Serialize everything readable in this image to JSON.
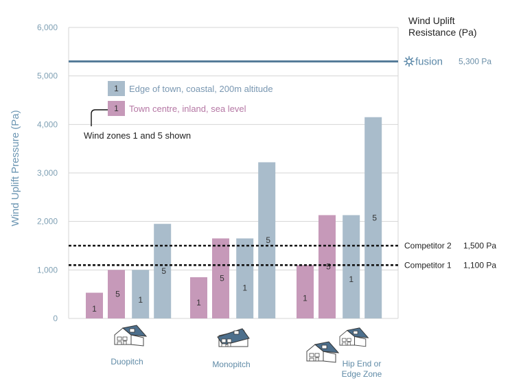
{
  "chart_data": {
    "type": "bar",
    "ylabel": "Wind Uplift Pressure (Pa)",
    "ylim": [
      0,
      6000
    ],
    "yticks": [
      "0",
      "1,000",
      "2,000",
      "3,000",
      "4,000",
      "5,000",
      "6,000"
    ],
    "grid": true,
    "right_title_line1": "Wind Uplift",
    "right_title_line2": "Resistance (Pa)",
    "categories": [
      {
        "label_lines": [
          "Duopitch"
        ],
        "icon": "house-duopitch-icon"
      },
      {
        "label_lines": [
          "Monopitch"
        ],
        "icon": "house-monopitch-icon"
      },
      {
        "label_lines": [
          "Hip End or",
          "Edge Zone"
        ],
        "icon": "house-hip-end-icon"
      }
    ],
    "series": [
      {
        "name": "Town centre, inland, sea level",
        "color": "#c699b9"
      },
      {
        "name": "Edge of town, coastal, 200m altitude",
        "color": "#a9bccb"
      }
    ],
    "bars": [
      {
        "category": 0,
        "series": 0,
        "zone": "1",
        "value": 530
      },
      {
        "category": 0,
        "series": 0,
        "zone": "5",
        "value": 1000
      },
      {
        "category": 0,
        "series": 1,
        "zone": "1",
        "value": 1000
      },
      {
        "category": 0,
        "series": 1,
        "zone": "5",
        "value": 1950
      },
      {
        "category": 1,
        "series": 0,
        "zone": "1",
        "value": 850
      },
      {
        "category": 1,
        "series": 0,
        "zone": "5",
        "value": 1650
      },
      {
        "category": 1,
        "series": 1,
        "zone": "1",
        "value": 1650
      },
      {
        "category": 1,
        "series": 1,
        "zone": "5",
        "value": 3220
      },
      {
        "category": 2,
        "series": 0,
        "zone": "1",
        "value": 1100
      },
      {
        "category": 2,
        "series": 0,
        "zone": "5",
        "value": 2130
      },
      {
        "category": 2,
        "series": 1,
        "zone": "1",
        "value": 2130
      },
      {
        "category": 2,
        "series": 1,
        "zone": "5",
        "value": 4150
      }
    ],
    "reference_lines": [
      {
        "label": "fusion",
        "value_label": "5,300 Pa",
        "value": 5300,
        "style": "solid",
        "color": "#557c99"
      },
      {
        "label": "Competitor 2",
        "value_label": "1,500 Pa",
        "value": 1500,
        "style": "dashed",
        "color": "#111111"
      },
      {
        "label": "Competitor 1",
        "value_label": "1,100 Pa",
        "value": 1100,
        "style": "dashed",
        "color": "#111111"
      }
    ],
    "legend": {
      "placement": "top-left",
      "items": [
        {
          "swatch_text": "1",
          "label": "Edge of town, coastal, 200m altitude",
          "series": 1
        },
        {
          "swatch_text": "1",
          "label": "Town centre, inland, sea level",
          "series": 0
        }
      ]
    },
    "annotation": "Wind zones 1 and 5 shown"
  }
}
